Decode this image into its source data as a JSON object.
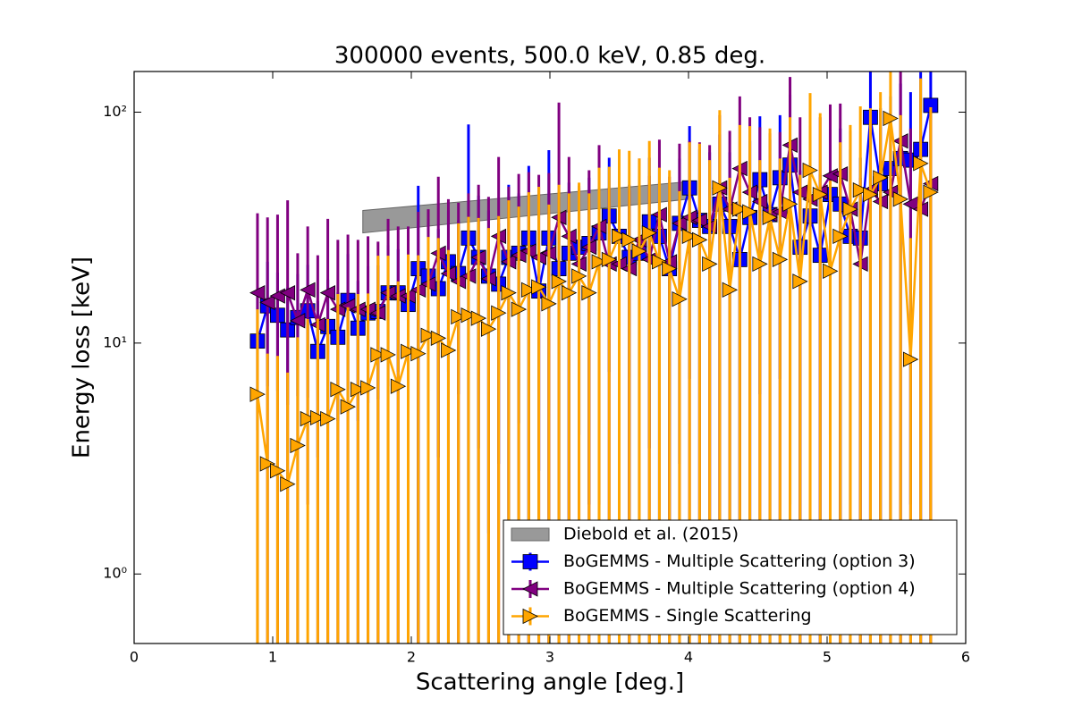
{
  "chart_data": {
    "type": "line",
    "title": "300000 events, 500.0 keV, 0.85 deg.",
    "xlabel": "Scattering angle [deg.]",
    "ylabel": "Energy loss [keV]",
    "xlim": [
      0,
      6
    ],
    "xticks": [
      0,
      1,
      2,
      3,
      4,
      5,
      6
    ],
    "ylim": [
      0.5,
      150
    ],
    "yticks": [
      {
        "value": 1,
        "label": "10⁰"
      },
      {
        "value": 10,
        "label": "10¹"
      },
      {
        "value": 100,
        "label": "10²"
      }
    ],
    "ylog": true,
    "legend": "lower right",
    "band": {
      "name": "Diebold et al. (2015)",
      "color": "#999999",
      "x": [
        1.65,
        4.0
      ],
      "low": [
        30,
        42
      ],
      "high": [
        37.5,
        50
      ]
    },
    "x": [
      0.89,
      0.9625,
      1.035,
      1.1075,
      1.18,
      1.2525,
      1.325,
      1.3975,
      1.47,
      1.5425,
      1.615,
      1.6875,
      1.76,
      1.8325,
      1.905,
      1.9775,
      2.05,
      2.1225,
      2.195,
      2.2675,
      2.34,
      2.4125,
      2.485,
      2.5575,
      2.63,
      2.7025,
      2.775,
      2.8475,
      2.92,
      2.9925,
      3.065,
      3.1375,
      3.21,
      3.2825,
      3.355,
      3.4275,
      3.5,
      3.5725,
      3.645,
      3.7175,
      3.79,
      3.8625,
      3.935,
      4.0075,
      4.08,
      4.1525,
      4.225,
      4.2975,
      4.37,
      4.4425,
      4.515,
      4.5875,
      4.66,
      4.7325,
      4.805,
      4.8775,
      4.95,
      5.0225,
      5.095,
      5.1675,
      5.24,
      5.3125,
      5.385,
      5.4575,
      5.53,
      5.6025,
      5.675,
      5.7475
    ],
    "series": [
      {
        "name": "BoGEMMS - Multiple Scattering (option 3)",
        "color": "#0000ff",
        "marker": "square",
        "values": [
          10.2,
          14.5,
          13.2,
          11.4,
          12.9,
          13.8,
          9.2,
          11.8,
          10.6,
          15.3,
          11.6,
          13.5,
          13.7,
          16.5,
          16.5,
          14.7,
          21,
          19.5,
          17.2,
          22.5,
          20,
          28.5,
          23.5,
          19.5,
          18,
          23.5,
          24.5,
          28.5,
          16.8,
          28.5,
          21,
          24.5,
          26,
          27,
          30,
          35.5,
          29,
          23.5,
          24.5,
          33.5,
          29,
          21,
          33,
          47,
          34,
          32,
          40,
          32,
          23,
          35,
          51,
          36,
          52,
          59,
          26,
          35.5,
          24,
          44,
          40,
          29,
          28.5,
          95,
          49,
          57,
          63,
          62,
          69,
          107
        ],
        "errors": [
          6,
          8,
          7,
          6,
          7,
          8,
          6,
          7,
          6,
          9,
          7,
          8,
          8,
          10,
          9,
          9,
          27,
          15,
          14,
          15,
          14,
          60,
          20,
          18,
          15,
          25,
          20,
          30,
          14,
          40,
          22,
          25,
          22,
          25,
          28,
          28,
          30,
          25,
          24,
          30,
          28,
          20,
          30,
          40,
          35,
          35,
          40,
          35,
          25,
          40,
          45,
          40,
          45,
          60,
          30,
          40,
          30,
          40,
          45,
          40,
          35,
          100,
          55,
          60,
          70,
          60,
          80,
          110
        ]
      },
      {
        "name": "BoGEMMS - Multiple Scattering (option 4)",
        "color": "#800080",
        "marker": "left",
        "values": [
          16.5,
          15,
          16,
          16.5,
          12.5,
          17,
          12,
          16.5,
          14,
          14.5,
          14,
          14,
          13.5,
          16.5,
          16,
          16,
          17,
          18,
          24.5,
          20,
          18.5,
          19.5,
          23.5,
          19,
          29,
          22.5,
          24,
          25,
          23.5,
          24.5,
          35,
          29,
          22,
          26,
          32,
          22,
          22,
          21,
          28,
          23,
          36,
          22.5,
          33,
          35,
          34,
          32,
          47,
          38,
          57,
          45,
          41,
          36,
          37,
          72,
          45,
          42,
          45,
          53,
          54,
          38,
          22,
          46,
          41,
          45,
          75,
          40,
          38,
          49
        ],
        "errors": [
          20,
          20,
          20,
          25,
          12,
          15,
          12,
          18,
          14,
          15,
          14,
          15,
          14,
          18,
          16,
          16,
          20,
          20,
          28,
          22,
          22,
          25,
          25,
          24,
          35,
          25,
          30,
          30,
          30,
          30,
          75,
          35,
          25,
          30,
          40,
          25,
          30,
          25,
          35,
          30,
          40,
          30,
          40,
          40,
          40,
          40,
          50,
          45,
          60,
          50,
          45,
          45,
          45,
          70,
          50,
          45,
          50,
          55,
          55,
          45,
          30,
          50,
          45,
          50,
          80,
          45,
          45,
          55
        ]
      },
      {
        "name": "BoGEMMS - Single Scattering",
        "color": "#ffa500",
        "marker": "right",
        "values": [
          6,
          3,
          2.8,
          2.45,
          3.6,
          4.7,
          4.75,
          4.7,
          6.3,
          5.3,
          6.3,
          6.4,
          8.9,
          8.9,
          6.5,
          9.2,
          9,
          10.8,
          10.5,
          9.3,
          13,
          13.2,
          12.8,
          11.5,
          13.5,
          16.5,
          14,
          17,
          17.5,
          14.8,
          18.5,
          16.5,
          19.5,
          16.5,
          22.5,
          23,
          29,
          28,
          25,
          30,
          22.5,
          21,
          15.5,
          29,
          28,
          22,
          47,
          17,
          38,
          37,
          22,
          35,
          23,
          40,
          18.5,
          56,
          44,
          20.5,
          29,
          38,
          46,
          44,
          52,
          94,
          42,
          8.5,
          60,
          45
        ],
        "errors": [
          8,
          6,
          6,
          5,
          7,
          8,
          8,
          8,
          10,
          9,
          10,
          10,
          15,
          15,
          12,
          15,
          15,
          18,
          18,
          16,
          20,
          22,
          22,
          20,
          22,
          25,
          25,
          28,
          30,
          25,
          30,
          28,
          30,
          28,
          35,
          35,
          40,
          40,
          38,
          45,
          35,
          35,
          30,
          45,
          45,
          40,
          55,
          35,
          50,
          50,
          40,
          50,
          40,
          55,
          35,
          65,
          55,
          30,
          45,
          50,
          60,
          60,
          70,
          110,
          55,
          20,
          80,
          60
        ]
      }
    ]
  }
}
